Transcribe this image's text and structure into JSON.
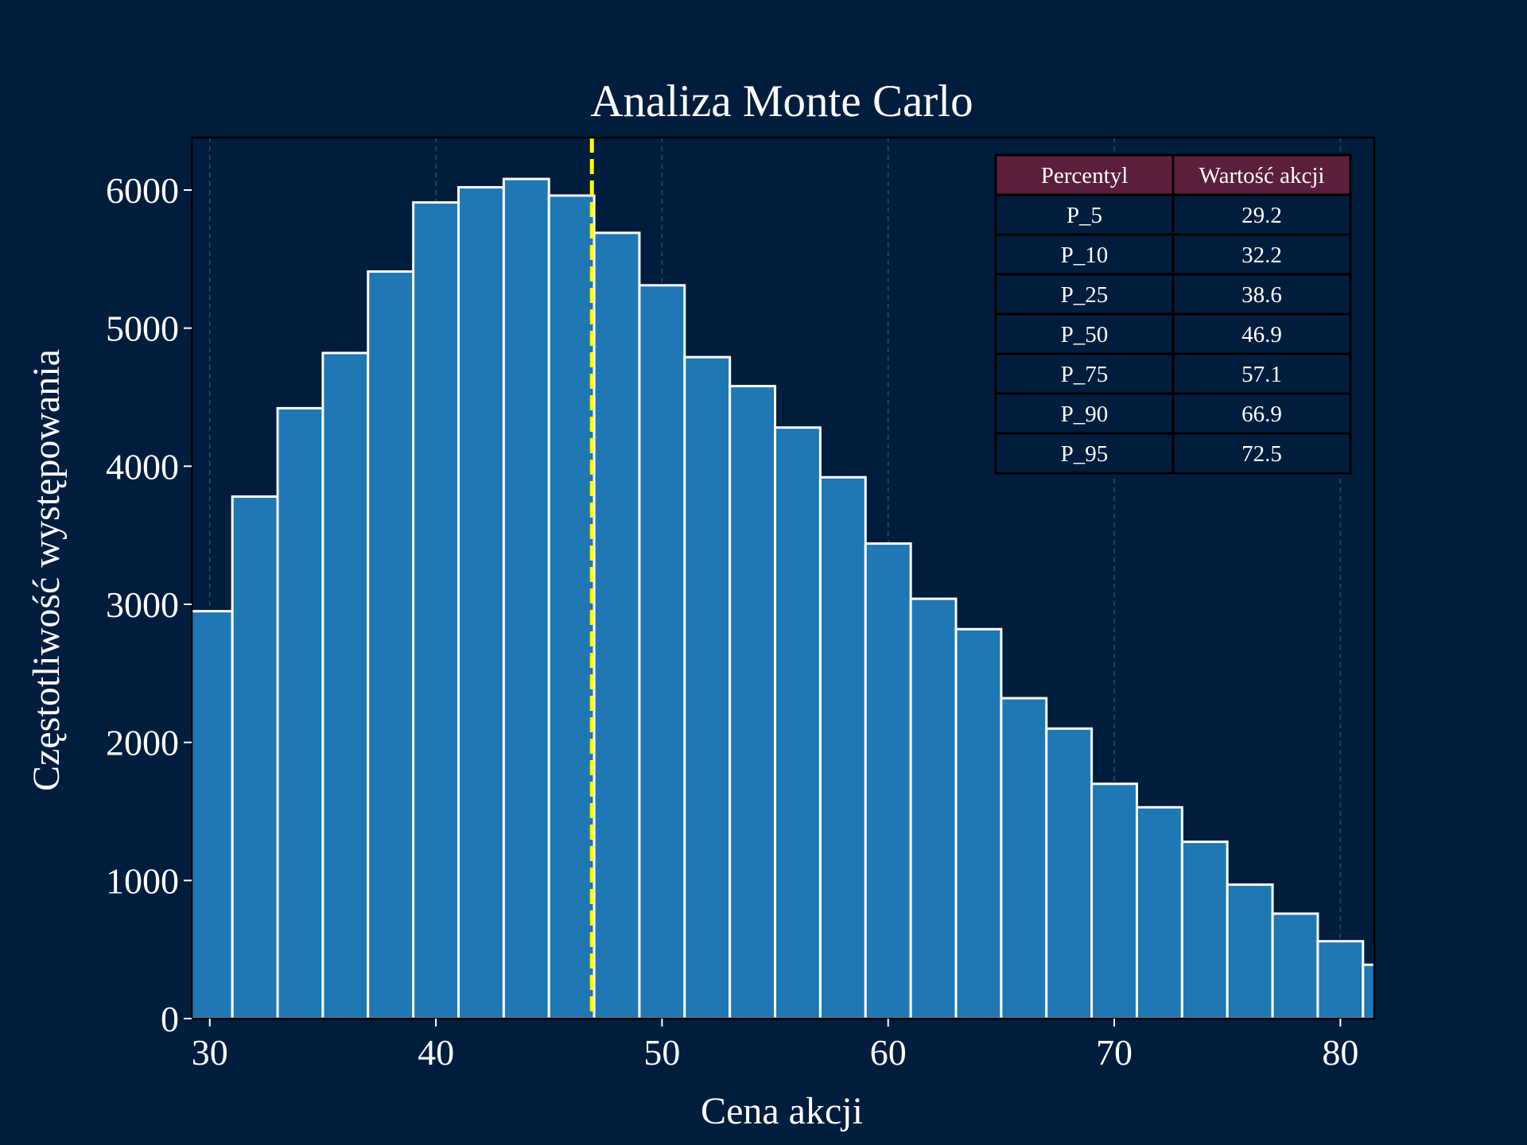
{
  "chart_data": {
    "type": "bar",
    "title": "Analiza Monte Carlo",
    "xlabel": "Cena akcji",
    "ylabel": "Częstotliwość występowania",
    "xlim": [
      29.2,
      81.5
    ],
    "ylim": [
      0,
      6380
    ],
    "x_ticks": [
      30,
      40,
      50,
      60,
      70,
      80
    ],
    "y_ticks": [
      0,
      1000,
      2000,
      3000,
      4000,
      5000,
      6000
    ],
    "grid": "vertical-dashed",
    "bin_edges": [
      29.0,
      31.0,
      33.0,
      35.0,
      37.0,
      39.0,
      41.0,
      43.0,
      45.0,
      47.0,
      49.0,
      51.0,
      53.0,
      55.0,
      57.0,
      59.0,
      61.0,
      63.0,
      65.0,
      67.0,
      69.0,
      71.0,
      73.0,
      75.0,
      77.0,
      79.0,
      81.0,
      83.0
    ],
    "values": [
      2950,
      3780,
      4420,
      4820,
      5410,
      5910,
      6020,
      6080,
      5960,
      5690,
      5310,
      4790,
      4580,
      4280,
      3920,
      3440,
      3040,
      2820,
      2320,
      2100,
      1700,
      1530,
      1280,
      970,
      760,
      560,
      390
    ],
    "median_line": {
      "x": 46.9,
      "color": "#ffff00"
    },
    "bar_color": "#1f77b4",
    "bar_edge_color": "#ffffff",
    "background": "#001d3d",
    "table": {
      "placement": "top-right",
      "header_color": "#5b1f3c",
      "columns": [
        "Percentyl",
        "Wartość akcji"
      ],
      "rows": [
        [
          "P_5",
          "29.2"
        ],
        [
          "P_10",
          "32.2"
        ],
        [
          "P_25",
          "38.6"
        ],
        [
          "P_50",
          "46.9"
        ],
        [
          "P_75",
          "57.1"
        ],
        [
          "P_90",
          "66.9"
        ],
        [
          "P_95",
          "72.5"
        ]
      ]
    }
  }
}
